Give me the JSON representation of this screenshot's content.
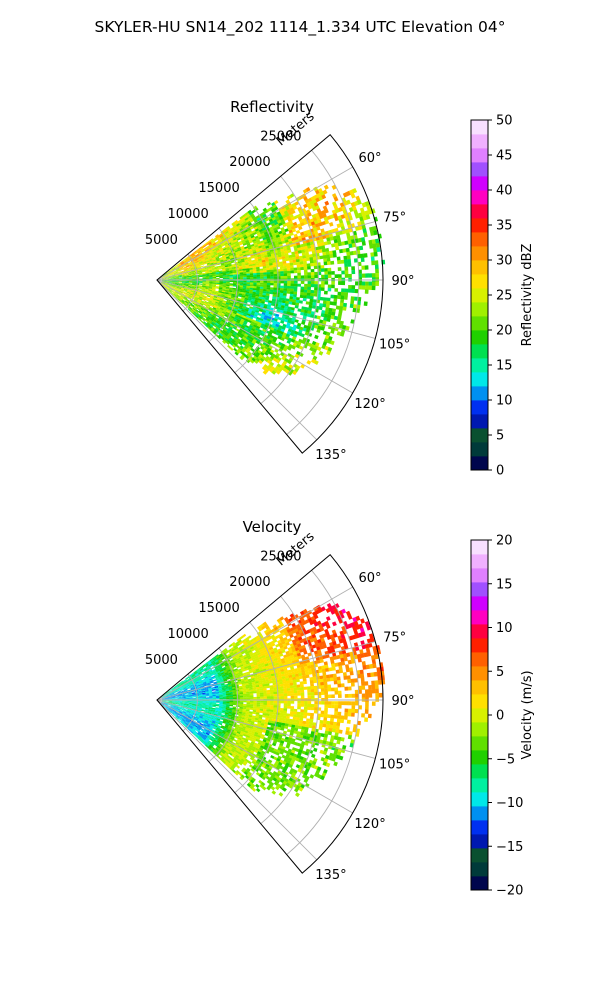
{
  "figure": {
    "suptitle": "SKYLER-HU  SN14_202  1114_1.334 UTC Elevation 04°"
  },
  "chart_data": [
    {
      "type": "heatmap",
      "projection": "polar-sector",
      "title": "Reflectivity",
      "radial_label": "Meters",
      "radial_ticks": [
        5000,
        10000,
        15000,
        20000,
        25000
      ],
      "radial_tick_labels": [
        "5000",
        "10000",
        "15000",
        "20000",
        "25000"
      ],
      "azimuth_range_deg": [
        50,
        140
      ],
      "azimuth_ticks": [
        60,
        75,
        90,
        105,
        120,
        135
      ],
      "azimuth_tick_labels": [
        "60°",
        "75°",
        "90°",
        "105°",
        "120°",
        "135°"
      ],
      "range_max_m": 28000,
      "grid": true,
      "field_description_regions": [
        {
          "azimuth": [
            55,
            75
          ],
          "range": [
            18000,
            26000
          ],
          "value": 24
        },
        {
          "azimuth": [
            60,
            85
          ],
          "range": [
            3000,
            14000
          ],
          "value": 24
        },
        {
          "azimuth": [
            85,
            110
          ],
          "range": [
            8000,
            20000
          ],
          "value": 16
        },
        {
          "azimuth": [
            90,
            135
          ],
          "range": [
            2000,
            20000
          ],
          "value": 21
        }
      ],
      "colorbar": {
        "label": "Reflectivity dBZ",
        "range": [
          0,
          50
        ],
        "ticks": [
          0,
          5,
          10,
          15,
          20,
          25,
          30,
          35,
          40,
          45,
          50
        ],
        "tick_labels": [
          "0",
          "5",
          "10",
          "15",
          "20",
          "25",
          "30",
          "35",
          "40",
          "45",
          "50"
        ],
        "colors": [
          "#00064d",
          "#003a3a",
          "#0a5030",
          "#0018b0",
          "#0030f0",
          "#0090f0",
          "#00e8e8",
          "#00f0a0",
          "#00e050",
          "#20d000",
          "#60e000",
          "#a0f000",
          "#d8f000",
          "#ffe000",
          "#ffc000",
          "#ff9000",
          "#ff6000",
          "#ff2000",
          "#ff0040",
          "#ff00c0",
          "#d000ff",
          "#a050ff",
          "#e080ff",
          "#f0b0ff",
          "#f8e0ff"
        ]
      }
    },
    {
      "type": "heatmap",
      "projection": "polar-sector",
      "title": "Velocity",
      "radial_label": "Meters",
      "radial_ticks": [
        5000,
        10000,
        15000,
        20000,
        25000
      ],
      "radial_tick_labels": [
        "5000",
        "10000",
        "15000",
        "20000",
        "25000"
      ],
      "azimuth_range_deg": [
        50,
        140
      ],
      "azimuth_ticks": [
        60,
        75,
        90,
        105,
        120,
        135
      ],
      "azimuth_tick_labels": [
        "60°",
        "75°",
        "90°",
        "105°",
        "120°",
        "135°"
      ],
      "range_max_m": 28000,
      "grid": true,
      "field_description_regions": [
        {
          "azimuth": [
            55,
            135
          ],
          "range": [
            0,
            8000
          ],
          "value": -9
        },
        {
          "azimuth": [
            55,
            135
          ],
          "range": [
            8000,
            14000
          ],
          "value": -1
        },
        {
          "azimuth": [
            55,
            90
          ],
          "range": [
            14000,
            26000
          ],
          "value": 5
        },
        {
          "azimuth": [
            105,
            130
          ],
          "range": [
            14000,
            22000
          ],
          "value": -3
        }
      ],
      "colorbar": {
        "label": "Velocity (m/s)",
        "range": [
          -20,
          20
        ],
        "ticks": [
          -20,
          -15,
          -10,
          -5,
          0,
          5,
          10,
          15,
          20
        ],
        "tick_labels": [
          "−20",
          "−15",
          "−10",
          "−5",
          "0",
          "5",
          "10",
          "15",
          "20"
        ],
        "colors": [
          "#00064d",
          "#003a3a",
          "#0a5030",
          "#0018b0",
          "#0030f0",
          "#0090f0",
          "#00e8e8",
          "#00f0a0",
          "#00e050",
          "#20d000",
          "#60e000",
          "#a0f000",
          "#d8f000",
          "#ffe000",
          "#ffc000",
          "#ff9000",
          "#ff6000",
          "#ff2000",
          "#ff0040",
          "#ff00c0",
          "#d000ff",
          "#a050ff",
          "#e080ff",
          "#f0b0ff",
          "#f8e0ff"
        ]
      }
    }
  ]
}
